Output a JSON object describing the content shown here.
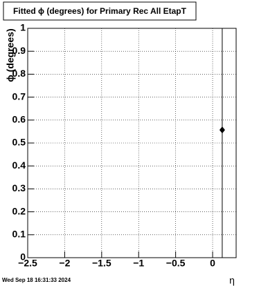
{
  "chart_data": {
    "type": "errorbar",
    "title": "Fitted ϕ (degrees) for Primary Rec All EtapT",
    "x_label": "η",
    "y_label": "ϕ (degrees)",
    "timestamp": "Wed Sep 18 16:31:33 2024",
    "x": [
      0.13
    ],
    "values": [
      0.557
    ],
    "errors": [
      0.6
    ],
    "color": "#000000",
    "xlim": [
      -2.5,
      0.318
    ],
    "ylim": [
      0,
      1
    ],
    "xticks": [
      {
        "value": -2.5,
        "label": "−2.5"
      },
      {
        "value": -2,
        "label": "−2"
      },
      {
        "value": -1.5,
        "label": "−1.5"
      },
      {
        "value": -1,
        "label": "−1"
      },
      {
        "value": -0.5,
        "label": "−0.5"
      },
      0
    ],
    "yticks": [
      0,
      0.1,
      0.2,
      0.3,
      0.4,
      0.5,
      0.6,
      0.7,
      0.8,
      0.9,
      1
    ],
    "grid": true
  }
}
